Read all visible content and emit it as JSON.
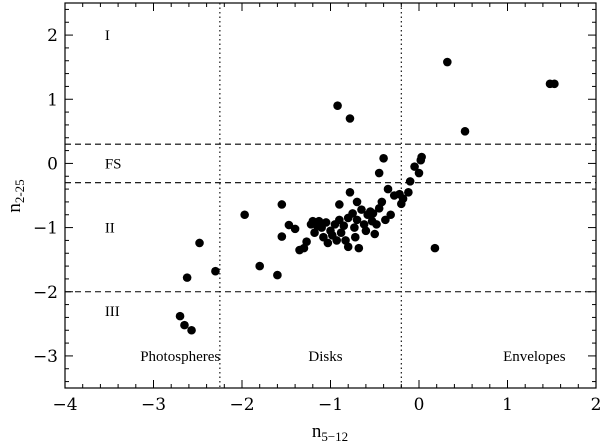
{
  "chart_data": {
    "type": "scatter",
    "xlabel": {
      "base": "n",
      "sub": "5−12"
    },
    "ylabel": {
      "base": "n",
      "sub": "2-25"
    },
    "xlim": [
      -4,
      2
    ],
    "ylim": [
      -3.5,
      2.5
    ],
    "x_ticks": [
      -4,
      -3,
      -2,
      -1,
      0,
      1,
      2
    ],
    "y_ticks": [
      -3,
      -2,
      -1,
      0,
      1,
      2
    ],
    "x_tick_labels": [
      "−4",
      "−3",
      "−2",
      "−1",
      "0",
      "1",
      "2"
    ],
    "y_tick_labels": [
      "−3",
      "−2",
      "−1",
      "0",
      "1",
      "2"
    ],
    "horizontal_dashed_lines": [
      0.3,
      -0.3,
      -2.0
    ],
    "vertical_dotted_lines": [
      -2.25,
      -0.2
    ],
    "region_labels": {
      "I": {
        "text": "I",
        "x": -3.55,
        "y": 2.0
      },
      "FS": {
        "text": "FS",
        "x": -3.55,
        "y": 0.0
      },
      "II": {
        "text": "II",
        "x": -3.55,
        "y": -1.0
      },
      "III": {
        "text": "III",
        "x": -3.55,
        "y": -2.3
      },
      "photospheres": {
        "text": "Photospheres",
        "x": -3.15,
        "y": -3.0
      },
      "disks": {
        "text": "Disks",
        "x": -1.25,
        "y": -3.0
      },
      "envelopes": {
        "text": "Envelopes",
        "x": 0.95,
        "y": -3.0
      }
    },
    "points": [
      [
        -2.7,
        -2.38
      ],
      [
        -2.65,
        -2.52
      ],
      [
        -2.57,
        -2.6
      ],
      [
        -2.62,
        -1.78
      ],
      [
        -2.48,
        -1.24
      ],
      [
        -2.3,
        -1.68
      ],
      [
        -1.97,
        -0.8
      ],
      [
        -1.8,
        -1.6
      ],
      [
        -1.6,
        -1.74
      ],
      [
        -1.55,
        -0.64
      ],
      [
        -1.55,
        -1.14
      ],
      [
        -1.47,
        -0.96
      ],
      [
        -1.4,
        -1.02
      ],
      [
        -1.35,
        -1.35
      ],
      [
        -1.3,
        -1.32
      ],
      [
        -1.27,
        -1.22
      ],
      [
        -1.22,
        -0.95
      ],
      [
        -1.2,
        -0.9
      ],
      [
        -1.18,
        -1.08
      ],
      [
        -1.15,
        -0.97
      ],
      [
        -1.13,
        -0.9
      ],
      [
        -1.1,
        -1.0
      ],
      [
        -1.08,
        -1.15
      ],
      [
        -1.05,
        -0.92
      ],
      [
        -1.03,
        -1.24
      ],
      [
        -1.0,
        -1.05
      ],
      [
        -0.98,
        -1.12
      ],
      [
        -0.95,
        -0.95
      ],
      [
        -0.93,
        -1.2
      ],
      [
        -0.9,
        -0.64
      ],
      [
        -0.9,
        -0.88
      ],
      [
        -0.88,
        -1.08
      ],
      [
        -0.85,
        -0.97
      ],
      [
        -0.83,
        -1.2
      ],
      [
        -0.8,
        -0.85
      ],
      [
        -0.8,
        -1.3
      ],
      [
        -0.78,
        -0.45
      ],
      [
        -0.75,
        -0.78
      ],
      [
        -0.73,
        -1.0
      ],
      [
        -0.72,
        -1.15
      ],
      [
        -0.7,
        -0.6
      ],
      [
        -0.7,
        -0.88
      ],
      [
        -0.68,
        -1.32
      ],
      [
        -0.65,
        -0.72
      ],
      [
        -0.62,
        -0.95
      ],
      [
        -0.6,
        -1.05
      ],
      [
        -0.58,
        -0.8
      ],
      [
        -0.55,
        -0.75
      ],
      [
        -0.53,
        -0.9
      ],
      [
        -0.52,
        -0.78
      ],
      [
        -0.5,
        -1.1
      ],
      [
        -0.48,
        -0.95
      ],
      [
        -0.45,
        -0.7
      ],
      [
        -0.45,
        -0.15
      ],
      [
        -0.42,
        -0.6
      ],
      [
        -0.4,
        0.08
      ],
      [
        -0.38,
        -0.88
      ],
      [
        -0.35,
        -0.4
      ],
      [
        -0.32,
        -0.8
      ],
      [
        -0.28,
        -0.5
      ],
      [
        -0.22,
        -0.48
      ],
      [
        -0.2,
        -0.63
      ],
      [
        -0.18,
        -0.55
      ],
      [
        -0.12,
        -0.45
      ],
      [
        -0.1,
        -0.28
      ],
      [
        -0.05,
        -0.05
      ],
      [
        0.0,
        -0.15
      ],
      [
        0.02,
        0.05
      ],
      [
        0.03,
        0.1
      ],
      [
        0.18,
        -1.32
      ],
      [
        0.52,
        0.5
      ],
      [
        0.32,
        1.58
      ],
      [
        -0.92,
        0.9
      ],
      [
        -0.78,
        0.7
      ],
      [
        1.48,
        1.24
      ],
      [
        1.53,
        1.24
      ]
    ]
  }
}
